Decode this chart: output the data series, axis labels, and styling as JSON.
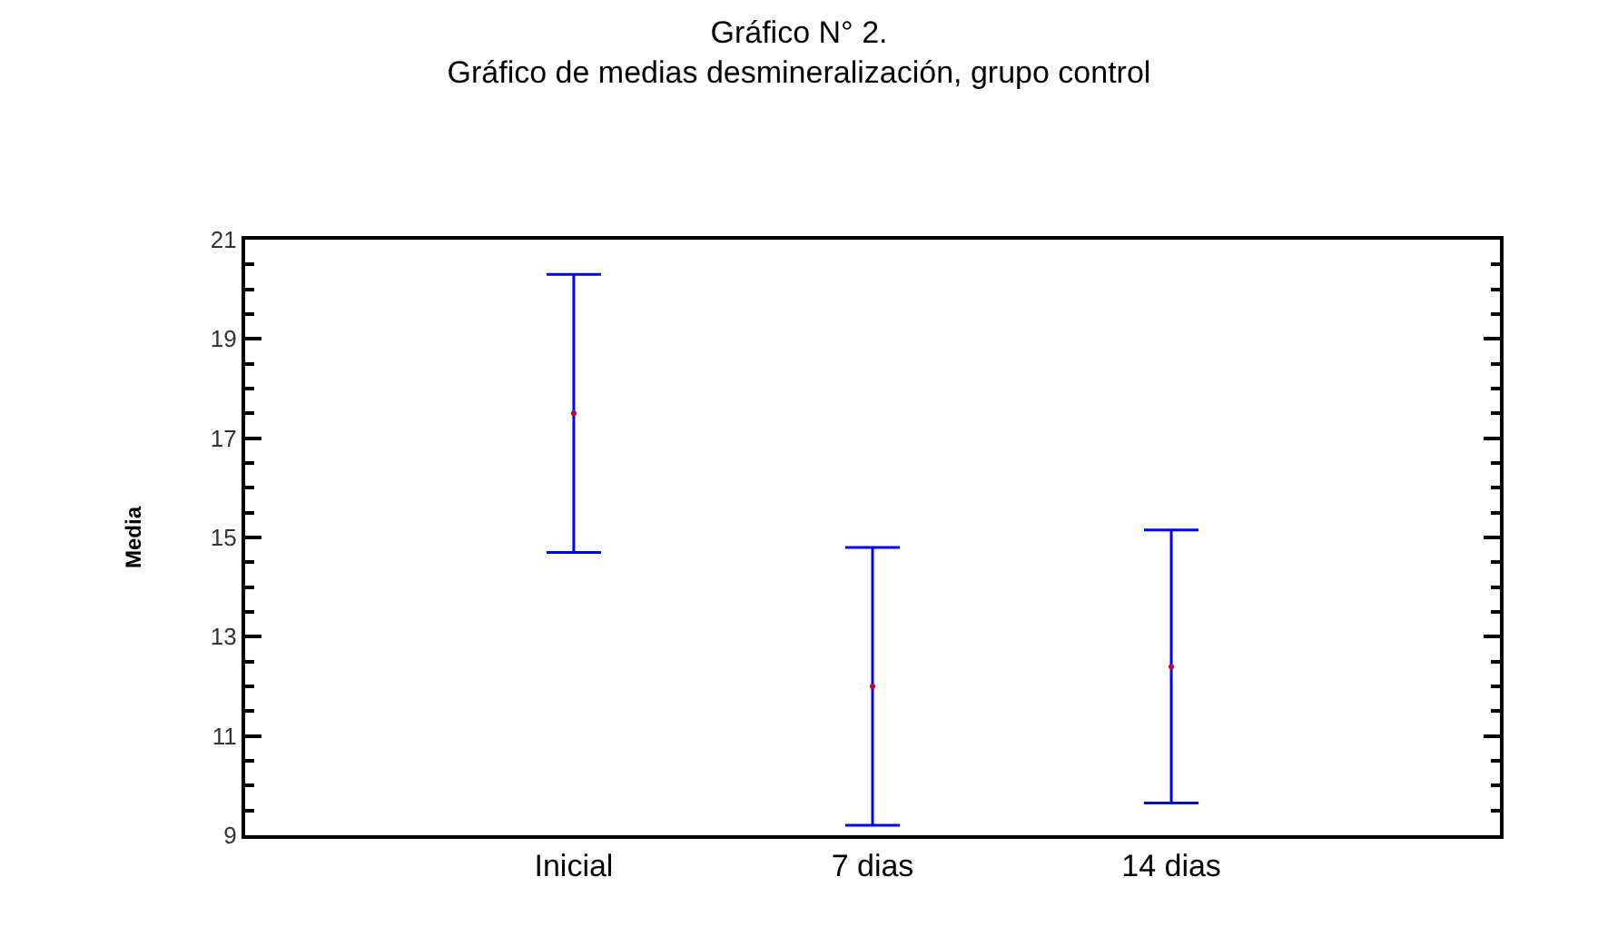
{
  "chart_data": {
    "type": "scatter",
    "title": "Gráfico N° 2.\nGráfico de medias desmineralización, grupo control",
    "ylabel": "Media",
    "categories": [
      "Inicial",
      "7 dias",
      "14 dias"
    ],
    "values": [
      17.5,
      12.0,
      12.4
    ],
    "errors": [
      2.8,
      2.8,
      2.75
    ],
    "color": "#cc0033",
    "ylim": [
      9,
      21
    ],
    "yticks": [
      9,
      11,
      13,
      15,
      17,
      19,
      21
    ],
    "grid": false,
    "marker": "circle"
  }
}
